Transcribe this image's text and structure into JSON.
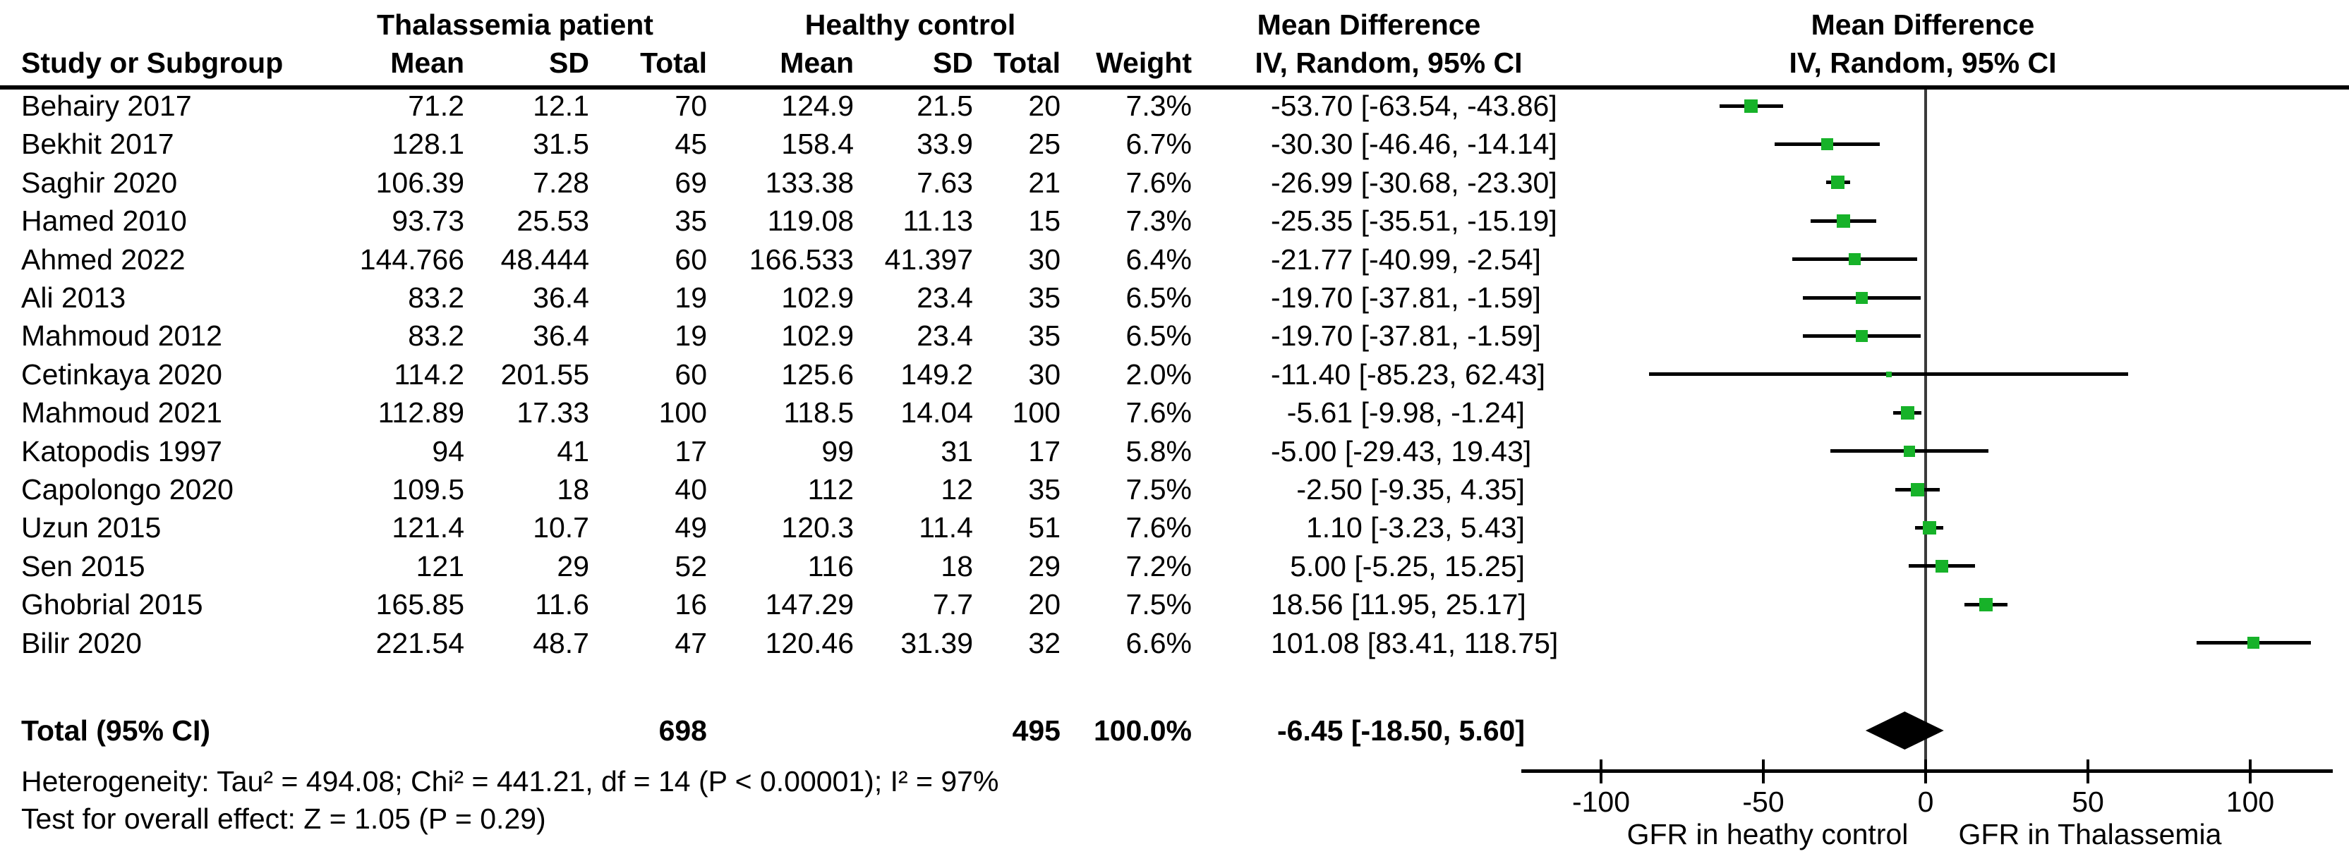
{
  "headers": {
    "study": "Study or Subgroup",
    "group1": "Thalassemia patient",
    "group2": "Healthy control",
    "mean": "Mean",
    "sd": "SD",
    "total": "Total",
    "weight": "Weight",
    "md_title": "Mean Difference",
    "md_subtitle": "IV, Random, 95% CI"
  },
  "rows": [
    {
      "study": "Behairy 2017",
      "t_mean": "71.2",
      "t_sd": "12.1",
      "t_total": "70",
      "c_mean": "124.9",
      "c_sd": "21.5",
      "c_total": "20",
      "weight": "7.3%",
      "ci": "-53.70 [-63.54, -43.86]"
    },
    {
      "study": "Bekhit 2017",
      "t_mean": "128.1",
      "t_sd": "31.5",
      "t_total": "45",
      "c_mean": "158.4",
      "c_sd": "33.9",
      "c_total": "25",
      "weight": "6.7%",
      "ci": "-30.30 [-46.46, -14.14]"
    },
    {
      "study": "Saghir 2020",
      "t_mean": "106.39",
      "t_sd": "7.28",
      "t_total": "69",
      "c_mean": "133.38",
      "c_sd": "7.63",
      "c_total": "21",
      "weight": "7.6%",
      "ci": "-26.99 [-30.68, -23.30]"
    },
    {
      "study": "Hamed 2010",
      "t_mean": "93.73",
      "t_sd": "25.53",
      "t_total": "35",
      "c_mean": "119.08",
      "c_sd": "11.13",
      "c_total": "15",
      "weight": "7.3%",
      "ci": "-25.35 [-35.51, -15.19]"
    },
    {
      "study": "Ahmed 2022",
      "t_mean": "144.766",
      "t_sd": "48.444",
      "t_total": "60",
      "c_mean": "166.533",
      "c_sd": "41.397",
      "c_total": "30",
      "weight": "6.4%",
      "ci": "-21.77 [-40.99, -2.54]"
    },
    {
      "study": "Ali 2013",
      "t_mean": "83.2",
      "t_sd": "36.4",
      "t_total": "19",
      "c_mean": "102.9",
      "c_sd": "23.4",
      "c_total": "35",
      "weight": "6.5%",
      "ci": "-19.70 [-37.81, -1.59]"
    },
    {
      "study": "Mahmoud 2012",
      "t_mean": "83.2",
      "t_sd": "36.4",
      "t_total": "19",
      "c_mean": "102.9",
      "c_sd": "23.4",
      "c_total": "35",
      "weight": "6.5%",
      "ci": "-19.70 [-37.81, -1.59]"
    },
    {
      "study": "Cetinkaya 2020",
      "t_mean": "114.2",
      "t_sd": "201.55",
      "t_total": "60",
      "c_mean": "125.6",
      "c_sd": "149.2",
      "c_total": "30",
      "weight": "2.0%",
      "ci": "-11.40 [-85.23, 62.43]"
    },
    {
      "study": "Mahmoud 2021",
      "t_mean": "112.89",
      "t_sd": "17.33",
      "t_total": "100",
      "c_mean": "118.5",
      "c_sd": "14.04",
      "c_total": "100",
      "weight": "7.6%",
      "ci": "-5.61 [-9.98, -1.24]"
    },
    {
      "study": "Katopodis 1997",
      "t_mean": "94",
      "t_sd": "41",
      "t_total": "17",
      "c_mean": "99",
      "c_sd": "31",
      "c_total": "17",
      "weight": "5.8%",
      "ci": "-5.00 [-29.43, 19.43]"
    },
    {
      "study": "Capolongo 2020",
      "t_mean": "109.5",
      "t_sd": "18",
      "t_total": "40",
      "c_mean": "112",
      "c_sd": "12",
      "c_total": "35",
      "weight": "7.5%",
      "ci": "-2.50 [-9.35, 4.35]"
    },
    {
      "study": "Uzun 2015",
      "t_mean": "121.4",
      "t_sd": "10.7",
      "t_total": "49",
      "c_mean": "120.3",
      "c_sd": "11.4",
      "c_total": "51",
      "weight": "7.6%",
      "ci": "1.10 [-3.23, 5.43]"
    },
    {
      "study": "Sen 2015",
      "t_mean": "121",
      "t_sd": "29",
      "t_total": "52",
      "c_mean": "116",
      "c_sd": "18",
      "c_total": "29",
      "weight": "7.2%",
      "ci": "5.00 [-5.25, 15.25]"
    },
    {
      "study": "Ghobrial 2015",
      "t_mean": "165.85",
      "t_sd": "11.6",
      "t_total": "16",
      "c_mean": "147.29",
      "c_sd": "7.7",
      "c_total": "20",
      "weight": "7.5%",
      "ci": "18.56 [11.95, 25.17]"
    },
    {
      "study": "Bilir 2020",
      "t_mean": "221.54",
      "t_sd": "48.7",
      "t_total": "47",
      "c_mean": "120.46",
      "c_sd": "31.39",
      "c_total": "32",
      "weight": "6.6%",
      "ci": "101.08 [83.41, 118.75]"
    }
  ],
  "total_row": {
    "label": "Total (95% CI)",
    "t_total": "698",
    "c_total": "495",
    "weight": "100.0%",
    "ci": "-6.45 [-18.50, 5.60]"
  },
  "footnotes": {
    "heterogeneity": "Heterogeneity: Tau² = 494.08; Chi² = 441.21, df = 14 (P < 0.00001); I² = 97%",
    "overall_effect": "Test for overall effect: Z = 1.05 (P = 0.29)"
  },
  "chart_data": {
    "type": "forest",
    "title": "Mean Difference",
    "subtitle": "IV, Random, 95% CI",
    "xlabel_left": "GFR in heathy control",
    "xlabel_right": "GFR in Thalassemia",
    "x_ticks": [
      -100,
      -50,
      0,
      50,
      100
    ],
    "x_range": [
      -125,
      125
    ],
    "marker_color": "#17b229",
    "studies": [
      {
        "name": "Behairy 2017",
        "md": -53.7,
        "low": -63.54,
        "high": -43.86,
        "weight_pct": 7.3
      },
      {
        "name": "Bekhit 2017",
        "md": -30.3,
        "low": -46.46,
        "high": -14.14,
        "weight_pct": 6.7
      },
      {
        "name": "Saghir 2020",
        "md": -26.99,
        "low": -30.68,
        "high": -23.3,
        "weight_pct": 7.6
      },
      {
        "name": "Hamed 2010",
        "md": -25.35,
        "low": -35.51,
        "high": -15.19,
        "weight_pct": 7.3
      },
      {
        "name": "Ahmed 2022",
        "md": -21.77,
        "low": -40.99,
        "high": -2.54,
        "weight_pct": 6.4
      },
      {
        "name": "Ali 2013",
        "md": -19.7,
        "low": -37.81,
        "high": -1.59,
        "weight_pct": 6.5
      },
      {
        "name": "Mahmoud 2012",
        "md": -19.7,
        "low": -37.81,
        "high": -1.59,
        "weight_pct": 6.5
      },
      {
        "name": "Cetinkaya 2020",
        "md": -11.4,
        "low": -85.23,
        "high": 62.43,
        "weight_pct": 2.0
      },
      {
        "name": "Mahmoud 2021",
        "md": -5.61,
        "low": -9.98,
        "high": -1.24,
        "weight_pct": 7.6
      },
      {
        "name": "Katopodis 1997",
        "md": -5.0,
        "low": -29.43,
        "high": 19.43,
        "weight_pct": 5.8
      },
      {
        "name": "Capolongo 2020",
        "md": -2.5,
        "low": -9.35,
        "high": 4.35,
        "weight_pct": 7.5
      },
      {
        "name": "Uzun 2015",
        "md": 1.1,
        "low": -3.23,
        "high": 5.43,
        "weight_pct": 7.6
      },
      {
        "name": "Sen 2015",
        "md": 5.0,
        "low": -5.25,
        "high": 15.25,
        "weight_pct": 7.2
      },
      {
        "name": "Ghobrial 2015",
        "md": 18.56,
        "low": 11.95,
        "high": 25.17,
        "weight_pct": 7.5
      },
      {
        "name": "Bilir 2020",
        "md": 101.08,
        "low": 83.41,
        "high": 118.75,
        "weight_pct": 6.6
      }
    ],
    "total": {
      "name": "Total (95% CI)",
      "md": -6.45,
      "low": -18.5,
      "high": 5.6,
      "weight_pct": 100.0
    }
  }
}
